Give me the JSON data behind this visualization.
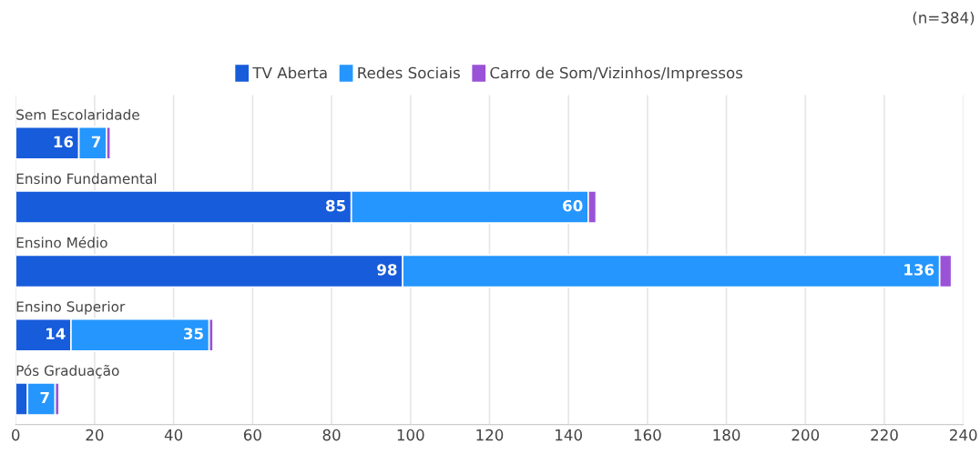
{
  "chart_data": {
    "type": "bar",
    "orientation": "horizontal",
    "stacked": true,
    "categories": [
      "Sem Escolaridade",
      "Ensino Fundamental",
      "Ensino Médio",
      "Ensino Superior",
      "Pós Graduação"
    ],
    "series": [
      {
        "name": "TV Aberta",
        "color": "#175cdb",
        "values": [
          16,
          85,
          98,
          14,
          3
        ],
        "value_labels": [
          "16",
          "85",
          "98",
          "14",
          null
        ]
      },
      {
        "name": "Redes Sociais",
        "color": "#2496fd",
        "values": [
          7,
          60,
          136,
          35,
          7
        ],
        "value_labels": [
          "7",
          "60",
          "136",
          "35",
          "7"
        ]
      },
      {
        "name": "Carro de Som/Vizinhos/Impressos",
        "color": "#9a52d6",
        "values": [
          1,
          2,
          3,
          1,
          1
        ]
      }
    ],
    "xlim": [
      0,
      240
    ],
    "xticks": [
      0,
      20,
      40,
      60,
      80,
      100,
      120,
      140,
      160,
      180,
      200,
      220,
      240
    ],
    "grid": "x",
    "legend": "top",
    "annotations": [
      "(n=384)"
    ]
  }
}
